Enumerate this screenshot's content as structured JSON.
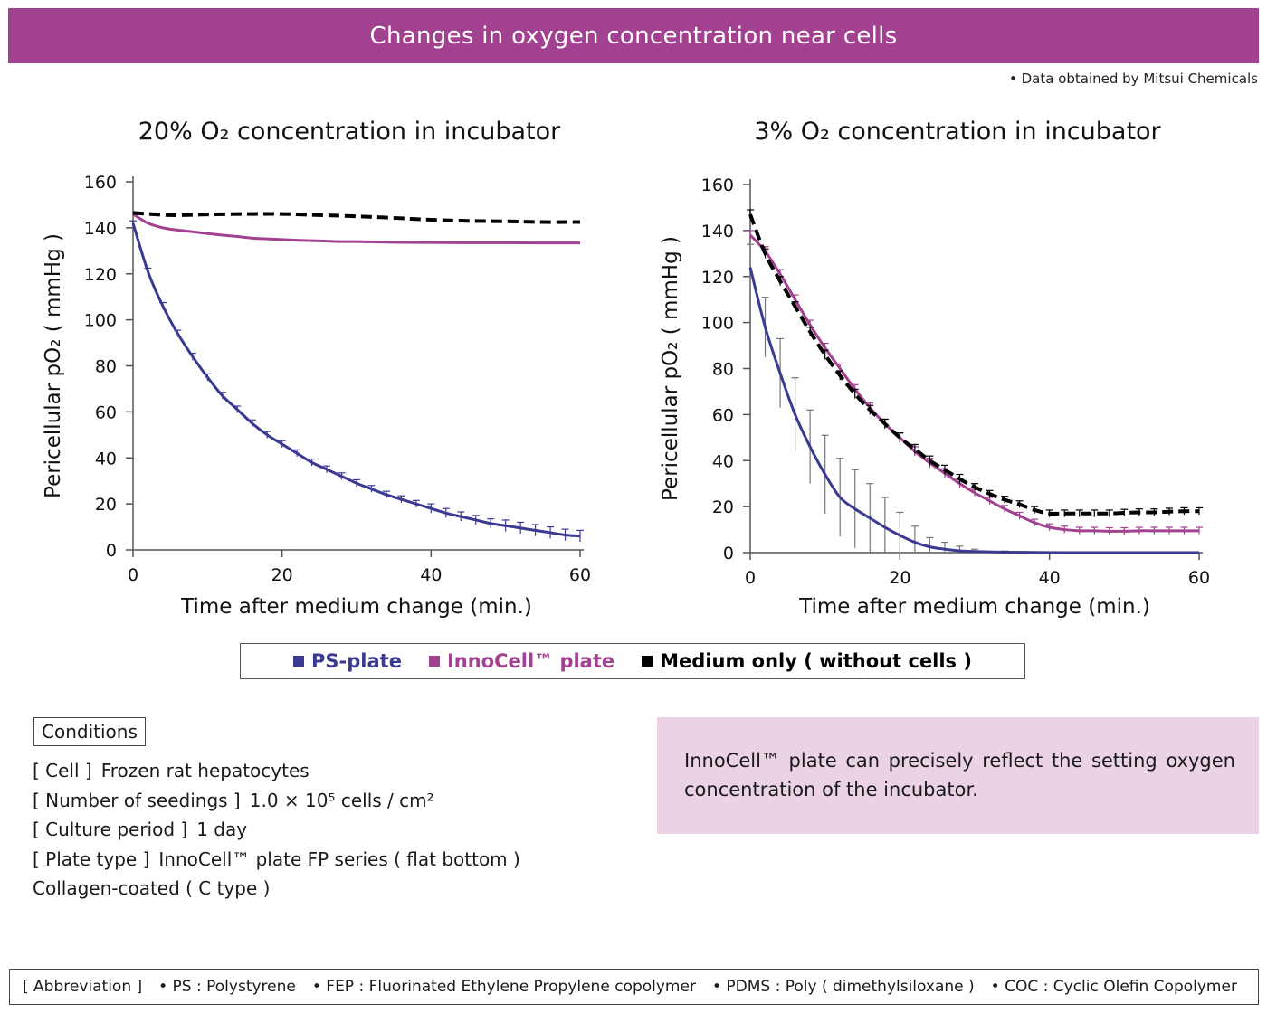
{
  "header": {
    "title": "Changes in oxygen concentration near cells"
  },
  "source_note": "• Data obtained by Mitsui Chemicals",
  "colors": {
    "banner": "#a2418f",
    "ps": "#3b3a93",
    "innocell": "#a2418f",
    "medium": "#000000",
    "note_bg": "#ebd2e5"
  },
  "chart_data": [
    {
      "type": "line",
      "title": "20% O₂ concentration in incubator",
      "xlabel": "Time after medium change (min.)",
      "ylabel": "Pericellular pO₂ ( mmHg )",
      "xlim": [
        0,
        60
      ],
      "ylim": [
        0,
        160
      ],
      "xticks": [
        0,
        20,
        40,
        60
      ],
      "yticks": [
        0,
        20,
        40,
        60,
        80,
        100,
        120,
        140,
        160
      ],
      "series": [
        {
          "name": "PS-plate",
          "key": "ps",
          "x": [
            0,
            2,
            4,
            6,
            8,
            10,
            12,
            14,
            16,
            18,
            20,
            22,
            24,
            26,
            28,
            30,
            32,
            34,
            36,
            38,
            40,
            42,
            44,
            46,
            48,
            50,
            52,
            54,
            56,
            58,
            60
          ],
          "y": [
            142,
            121,
            106,
            94,
            84,
            75,
            67,
            61,
            55,
            50,
            46,
            42,
            38,
            35,
            32,
            29,
            26.5,
            24,
            22,
            20,
            18,
            16,
            14.5,
            13,
            11.5,
            10.5,
            9.5,
            8.5,
            7.5,
            6.5,
            6
          ],
          "err": [
            1,
            1.5,
            1.5,
            1.5,
            1.5,
            1.5,
            1.5,
            1.5,
            1.5,
            1.5,
            1.5,
            1.5,
            1.5,
            1.5,
            1.5,
            1.5,
            1.5,
            1.5,
            1.5,
            1.5,
            2,
            2,
            2,
            2,
            2,
            2.5,
            2.5,
            2.5,
            2.5,
            2.5,
            2.5
          ]
        },
        {
          "name": "InnoCell™ plate",
          "key": "innocell",
          "x": [
            0,
            2,
            4,
            6,
            8,
            10,
            12,
            14,
            16,
            18,
            20,
            22,
            24,
            26,
            28,
            30,
            35,
            40,
            45,
            50,
            55,
            60
          ],
          "y": [
            146,
            142,
            140,
            139,
            138.3,
            137.5,
            136.8,
            136.2,
            135.5,
            135.2,
            134.9,
            134.6,
            134.4,
            134.2,
            134,
            134,
            133.7,
            133.6,
            133.5,
            133.5,
            133.4,
            133.4
          ]
        },
        {
          "name": "Medium only ( without cells )",
          "key": "medium",
          "dashed": true,
          "x": [
            0,
            5,
            10,
            15,
            20,
            25,
            30,
            35,
            40,
            45,
            50,
            55,
            60
          ],
          "y": [
            146.5,
            145.5,
            145.8,
            146,
            146,
            145.5,
            145,
            144.3,
            143.5,
            143,
            142.8,
            142.5,
            142.5
          ]
        }
      ]
    },
    {
      "type": "line",
      "title": "3% O₂ concentration in incubator",
      "xlabel": "Time after medium change (min.)",
      "ylabel": "Pericellular pO₂ ( mmHg )",
      "xlim": [
        0,
        60
      ],
      "ylim": [
        0,
        160
      ],
      "xticks": [
        0,
        20,
        40,
        60
      ],
      "yticks": [
        0,
        20,
        40,
        60,
        80,
        100,
        120,
        140,
        160
      ],
      "series": [
        {
          "name": "PS-plate",
          "key": "ps",
          "x": [
            0,
            2,
            4,
            6,
            8,
            10,
            12,
            14,
            16,
            18,
            20,
            22,
            24,
            26,
            28,
            30,
            34,
            38,
            42,
            46,
            50,
            54,
            58,
            60
          ],
          "y": [
            124,
            98,
            78,
            60,
            46,
            34,
            24,
            19,
            15,
            11,
            7.5,
            4.5,
            2.5,
            1.5,
            0.8,
            0.5,
            0.2,
            0.1,
            0,
            0,
            0,
            0,
            0,
            0
          ],
          "err": [
            10,
            13,
            15,
            16,
            16,
            17,
            17,
            17,
            15,
            13,
            10,
            7,
            4,
            3,
            2,
            1,
            0.5,
            0.2,
            0,
            0,
            0,
            0,
            0,
            0
          ]
        },
        {
          "name": "InnoCell™ plate",
          "key": "innocell",
          "x": [
            0,
            2,
            4,
            6,
            8,
            10,
            12,
            14,
            16,
            18,
            20,
            22,
            24,
            26,
            28,
            30,
            32,
            34,
            36,
            38,
            40,
            42,
            44,
            46,
            48,
            50,
            52,
            54,
            56,
            58,
            60
          ],
          "y": [
            138,
            131,
            121,
            110,
            99,
            89,
            80,
            71,
            63,
            56,
            50,
            44,
            39,
            34.5,
            30,
            26,
            22.5,
            19,
            16,
            13,
            11,
            10,
            9.5,
            9.5,
            9.3,
            9.3,
            9.5,
            9.5,
            9.5,
            9.5,
            9.5
          ],
          "err": [
            2,
            2,
            2,
            2,
            2,
            2,
            2,
            2,
            2,
            2,
            2,
            2,
            2,
            2,
            2,
            1.5,
            1.5,
            1.5,
            1.5,
            1.5,
            1.5,
            1.5,
            1.5,
            1.5,
            1.5,
            1.5,
            1.5,
            1.5,
            1.5,
            1.5,
            1.5
          ]
        },
        {
          "name": "Medium only ( without cells )",
          "key": "medium",
          "dashed": true,
          "x": [
            0,
            2,
            4,
            6,
            8,
            10,
            12,
            14,
            16,
            18,
            20,
            22,
            24,
            26,
            28,
            30,
            32,
            34,
            36,
            38,
            40,
            42,
            44,
            46,
            48,
            50,
            52,
            54,
            56,
            58,
            60
          ],
          "y": [
            147,
            130,
            118,
            107,
            96,
            86,
            77,
            69,
            62,
            56,
            50,
            45,
            40,
            36,
            32,
            28.5,
            25.5,
            23,
            21,
            18.5,
            17,
            17,
            17,
            17,
            17,
            17.3,
            17.5,
            17.5,
            17.8,
            18,
            18
          ],
          "err": [
            2,
            2,
            2,
            2,
            2,
            2,
            2,
            2,
            2,
            2,
            2,
            2,
            2,
            2,
            2,
            1.5,
            1.5,
            1.5,
            1.5,
            1.5,
            1.5,
            1.5,
            1.5,
            1.5,
            1.5,
            1.5,
            1.5,
            1.5,
            1.5,
            1.5,
            1.5
          ]
        }
      ]
    }
  ],
  "legend": {
    "items": [
      {
        "label": "PS-plate",
        "color": "#3b3a93"
      },
      {
        "label": "InnoCell™ plate",
        "color": "#a2418f"
      },
      {
        "label": "Medium only ( without cells )",
        "color": "#000000"
      }
    ]
  },
  "conditions": {
    "title": "Conditions",
    "lines": [
      {
        "k": "[ Cell ]",
        "v": "Frozen rat hepatocytes"
      },
      {
        "k": "[ Number of seedings ]",
        "v": "1.0 × 10⁵ cells / cm²"
      },
      {
        "k": "[ Culture period ]",
        "v": "1 day"
      },
      {
        "k": "[ Plate type ]",
        "v": "InnoCell™ plate FP series ( flat bottom )"
      },
      {
        "k": "",
        "v": "Collagen-coated ( C type )"
      }
    ]
  },
  "note": "InnoCell™ plate can precisely reflect the setting oxygen concentration of the incubator.",
  "abbreviations": {
    "label": "[ Abbreviation ]",
    "items": [
      "• PS : Polystyrene",
      "• FEP : Fluorinated Ethylene Propylene copolymer",
      "• PDMS : Poly ( dimethylsiloxane )",
      "• COC : Cyclic Olefin Copolymer"
    ]
  }
}
